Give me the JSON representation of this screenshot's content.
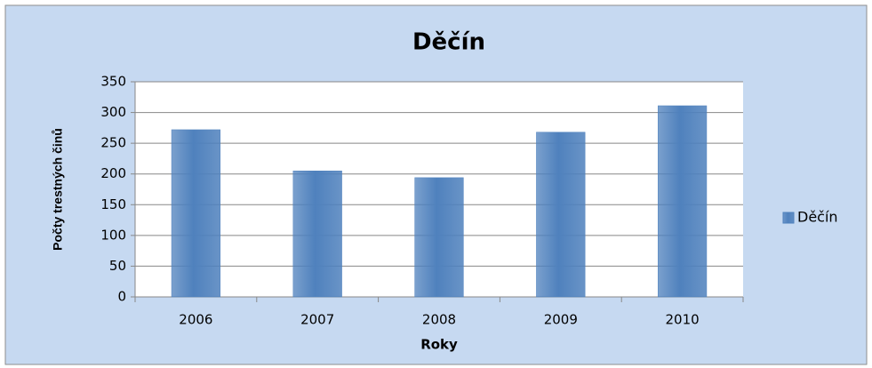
{
  "chart_data": {
    "type": "bar",
    "title": "Děčín",
    "y_label": "Počty trestných činů",
    "x_label": "Roky",
    "categories": [
      "2006",
      "2007",
      "2008",
      "2009",
      "2010"
    ],
    "series": [
      {
        "name": "Děčín",
        "color": "#4f81bd",
        "values": [
          272,
          205,
          194,
          268,
          311
        ]
      }
    ],
    "ylim": [
      0,
      350
    ],
    "yticks": [
      0,
      50,
      100,
      150,
      200,
      250,
      300,
      350
    ],
    "grid": true,
    "legend": "right"
  }
}
